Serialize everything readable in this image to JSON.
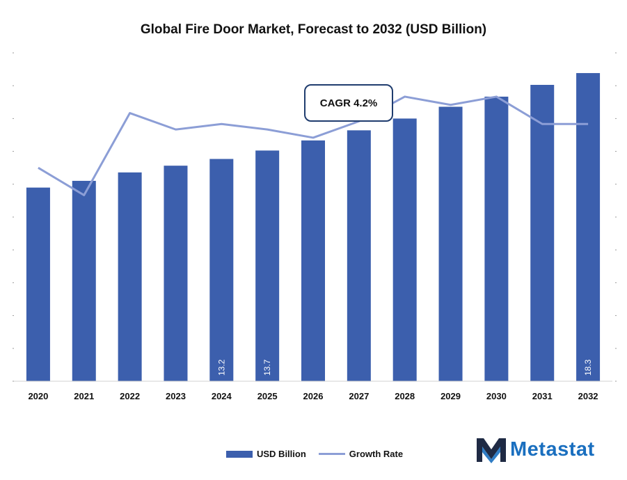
{
  "chart_data": {
    "type": "bar",
    "title": "Global Fire Door Market, Forecast to 2032 (USD Billion)",
    "categories": [
      "2020",
      "2021",
      "2022",
      "2023",
      "2024",
      "2025",
      "2026",
      "2027",
      "2028",
      "2029",
      "2030",
      "2031",
      "2032"
    ],
    "series": [
      {
        "name": "USD Billion",
        "type": "bar",
        "values": [
          11.5,
          11.9,
          12.4,
          12.8,
          13.2,
          13.7,
          14.3,
          14.9,
          15.6,
          16.3,
          16.9,
          17.6,
          18.3
        ],
        "data_labels": {
          "4": "13.2",
          "5": "13.7",
          "12": "18.3"
        }
      },
      {
        "name": "Growth Rate",
        "type": "line",
        "values": [
          3.3,
          2.3,
          5.3,
          4.7,
          4.9,
          4.7,
          4.4,
          5.0,
          5.9,
          5.6,
          5.9,
          4.9,
          4.9
        ]
      }
    ],
    "ylim": [
      0,
      19.5
    ],
    "growth_ylim": [
      -4.5,
      7.5
    ],
    "grid": false,
    "legend_position": "bottom",
    "annotation": "CAGR 4.2%",
    "colors": {
      "bar": "#3c5fad",
      "line": "#8c9ed6"
    }
  },
  "logo": {
    "text": "Metastat"
  }
}
